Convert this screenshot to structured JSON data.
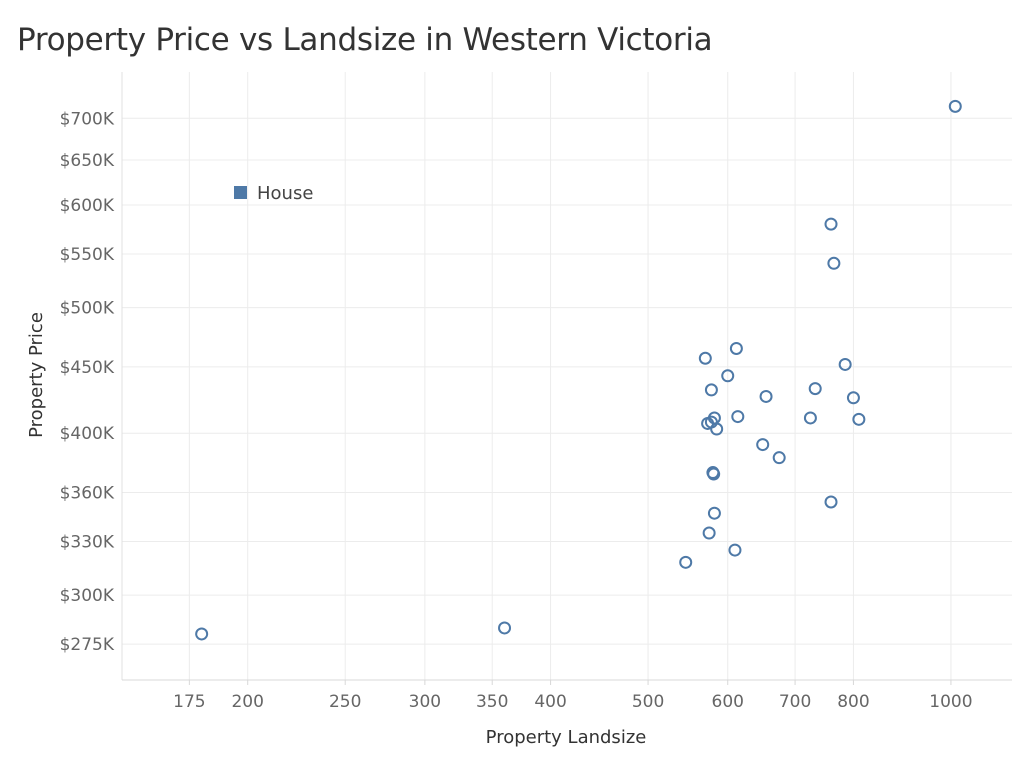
{
  "chart_data": {
    "type": "scatter",
    "title": "Property Price vs Landsize in Western Victoria",
    "xlabel": "Property Landsize",
    "ylabel": "Property Price",
    "x_scale": "log",
    "y_scale": "log",
    "xlim": [
      150,
      1150
    ],
    "ylim": [
      258000,
      760000
    ],
    "x_ticks": [
      {
        "value": 175,
        "label": "175"
      },
      {
        "value": 200,
        "label": "200"
      },
      {
        "value": 250,
        "label": "250"
      },
      {
        "value": 300,
        "label": "300"
      },
      {
        "value": 350,
        "label": "350"
      },
      {
        "value": 400,
        "label": "400"
      },
      {
        "value": 500,
        "label": "500"
      },
      {
        "value": 600,
        "label": "600"
      },
      {
        "value": 700,
        "label": "700"
      },
      {
        "value": 800,
        "label": "800"
      },
      {
        "value": 1000,
        "label": "1000"
      }
    ],
    "y_ticks": [
      {
        "value": 275000,
        "label": "$275K"
      },
      {
        "value": 300000,
        "label": "$300K"
      },
      {
        "value": 330000,
        "label": "$330K"
      },
      {
        "value": 360000,
        "label": "$360K"
      },
      {
        "value": 400000,
        "label": "$400K"
      },
      {
        "value": 450000,
        "label": "$450K"
      },
      {
        "value": 500000,
        "label": "$500K"
      },
      {
        "value": 550000,
        "label": "$550K"
      },
      {
        "value": 600000,
        "label": "$600K"
      },
      {
        "value": 650000,
        "label": "$650K"
      },
      {
        "value": 700000,
        "label": "$700K"
      }
    ],
    "grid": true,
    "legend": {
      "position": "top-left",
      "entries": [
        {
          "label": "House",
          "color": "#4e79a7"
        }
      ]
    },
    "series": [
      {
        "name": "House",
        "color": "#4e79a7",
        "marker": "hollow-circle",
        "points": [
          {
            "x": 180,
            "y": 280000
          },
          {
            "x": 360,
            "y": 283000
          },
          {
            "x": 545,
            "y": 318000
          },
          {
            "x": 570,
            "y": 457000
          },
          {
            "x": 573,
            "y": 407000
          },
          {
            "x": 575,
            "y": 335000
          },
          {
            "x": 578,
            "y": 432000
          },
          {
            "x": 578,
            "y": 408000
          },
          {
            "x": 580,
            "y": 373000
          },
          {
            "x": 581,
            "y": 372000
          },
          {
            "x": 582,
            "y": 347000
          },
          {
            "x": 582,
            "y": 411000
          },
          {
            "x": 585,
            "y": 403000
          },
          {
            "x": 600,
            "y": 443000
          },
          {
            "x": 610,
            "y": 325000
          },
          {
            "x": 612,
            "y": 465000
          },
          {
            "x": 614,
            "y": 412000
          },
          {
            "x": 650,
            "y": 392000
          },
          {
            "x": 655,
            "y": 427000
          },
          {
            "x": 675,
            "y": 383000
          },
          {
            "x": 725,
            "y": 411000
          },
          {
            "x": 733,
            "y": 433000
          },
          {
            "x": 760,
            "y": 580000
          },
          {
            "x": 760,
            "y": 354000
          },
          {
            "x": 765,
            "y": 541000
          },
          {
            "x": 785,
            "y": 452000
          },
          {
            "x": 800,
            "y": 426000
          },
          {
            "x": 810,
            "y": 410000
          },
          {
            "x": 1010,
            "y": 715000
          }
        ]
      }
    ]
  }
}
